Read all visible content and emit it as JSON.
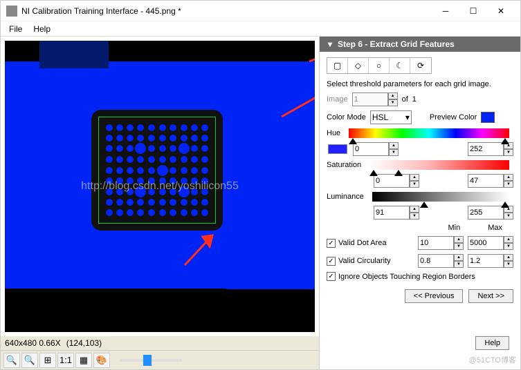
{
  "window": {
    "title": "NI Calibration Training Interface - 445.png *"
  },
  "menu": {
    "file": "File",
    "help": "Help"
  },
  "status": {
    "dim": "640x480 0.66X",
    "coords": "(124,103)"
  },
  "panel": {
    "title": "Step 6 - Extract Grid Features",
    "instruction": "Select threshold parameters for each grid image.",
    "image_label": "Image",
    "image_idx": "1",
    "of": "of",
    "image_total": "1",
    "colormode_label": "Color Mode",
    "colormode_value": "HSL",
    "preview_label": "Preview Color",
    "preview_color": "#0024f5",
    "hue_label": "Hue",
    "hue_min": "0",
    "hue_max": "252",
    "sat_label": "Saturation",
    "sat_min": "0",
    "sat_max": "47",
    "lum_label": "Luminance",
    "lum_min": "91",
    "lum_max": "255",
    "min_label": "Min",
    "max_label": "Max",
    "valid_dot": "Valid Dot Area",
    "dot_min": "10",
    "dot_max": "5000",
    "valid_circ": "Valid Circularity",
    "circ_min": "0.8",
    "circ_max": "1.2",
    "ignore": "Ignore Objects Touching Region Borders",
    "prev": "<< Previous",
    "next": "Next >>",
    "helpbtn": "Help"
  },
  "watermark": "http://blog.csdn.net/yoshilicon55",
  "botright": "@51CTO博客"
}
